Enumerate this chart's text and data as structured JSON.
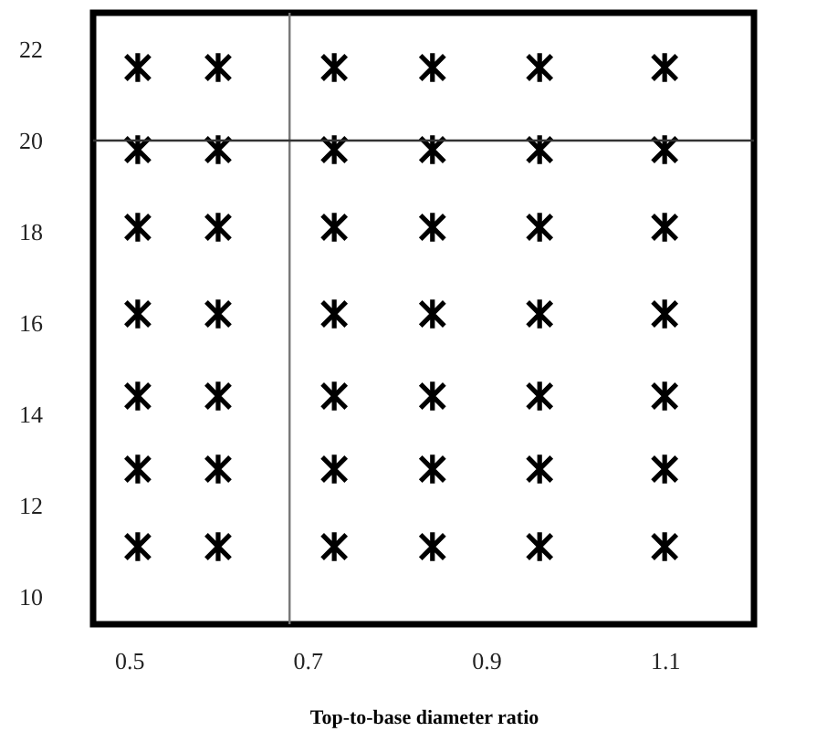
{
  "chart_data": {
    "type": "scatter",
    "xlabel": "Top-to-base diameter ratio",
    "x": [
      0.51,
      0.6,
      0.73,
      0.84,
      0.96,
      1.1,
      0.51,
      0.6,
      0.73,
      0.84,
      0.96,
      1.1,
      0.51,
      0.6,
      0.73,
      0.84,
      0.96,
      1.1,
      0.51,
      0.6,
      0.73,
      0.84,
      0.96,
      1.1,
      0.51,
      0.6,
      0.73,
      0.84,
      0.96,
      1.1,
      0.51,
      0.6,
      0.73,
      0.84,
      0.96,
      1.1,
      0.51,
      0.6,
      0.73,
      0.84,
      0.96,
      1.1
    ],
    "series": [
      {
        "color": "#000000",
        "values": [
          21.6,
          21.6,
          21.6,
          21.6,
          21.6,
          21.6,
          19.8,
          19.8,
          19.8,
          19.8,
          19.8,
          19.8,
          18.1,
          18.1,
          18.1,
          18.1,
          18.1,
          18.1,
          16.2,
          16.2,
          16.2,
          16.2,
          16.2,
          16.2,
          14.4,
          14.4,
          14.4,
          14.4,
          14.4,
          14.4,
          12.8,
          12.8,
          12.8,
          12.8,
          12.8,
          12.8,
          11.1,
          11.1,
          11.1,
          11.1,
          11.1,
          11.1
        ]
      }
    ],
    "xlim": [
      0.46,
      1.2
    ],
    "xticks": [
      0.5,
      0.7,
      0.9,
      1.1
    ],
    "ylim": [
      9.4,
      22.8
    ],
    "yticks": [
      10,
      12,
      14,
      16,
      18,
      20,
      22
    ],
    "ref_lines": [
      {
        "axis": "x",
        "value": 0.68,
        "color": "#777777"
      },
      {
        "axis": "y",
        "value": 20,
        "color": "#333333"
      }
    ],
    "marker": "cross",
    "grid": false
  }
}
